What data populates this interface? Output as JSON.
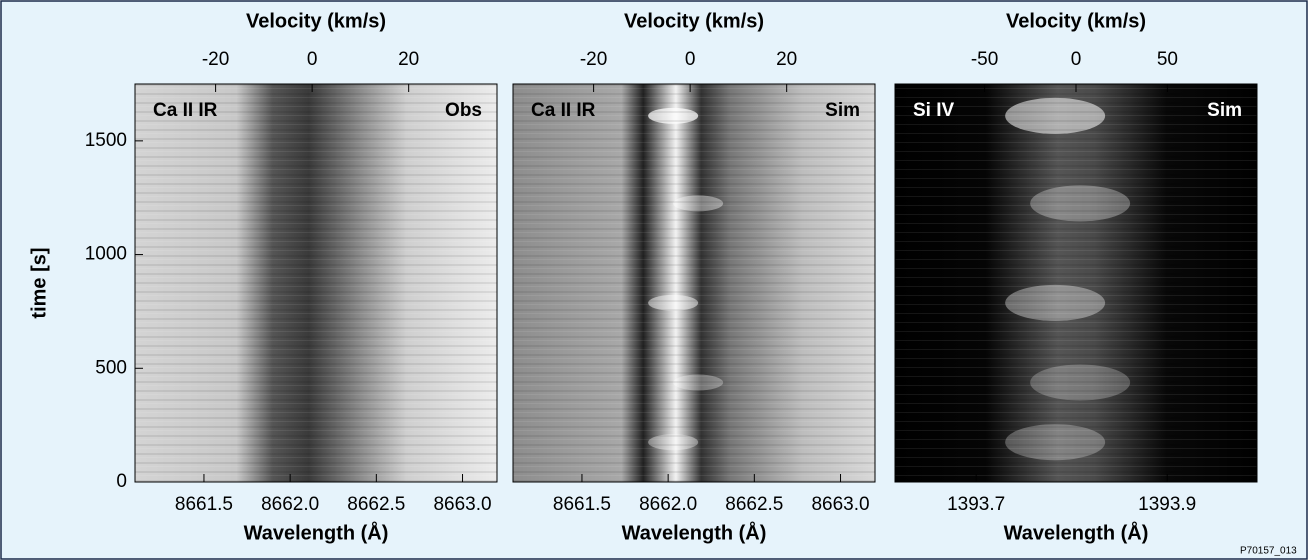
{
  "chart_data": [
    {
      "type": "image",
      "left_label": "Ca II IR",
      "right_label": "Obs",
      "colormap": "light",
      "xlabel": "Wavelength (Å)",
      "xlim": [
        8661.1,
        8663.2
      ],
      "xticks": [
        8661.5,
        {
          "value": 8662,
          "label": "8662.0"
        },
        8662.5,
        {
          "value": 8663,
          "label": "8663.0"
        }
      ],
      "x2label": "Velocity (km/s)",
      "x2lim": [
        -36.7,
        38.3
      ],
      "x2ticks": [
        -20,
        0,
        20
      ],
      "ylabel": "time [s]",
      "ylim": [
        0,
        1750
      ],
      "yticks": [
        0,
        500,
        1000,
        1500
      ]
    },
    {
      "type": "image",
      "left_label": "Ca II IR",
      "right_label": "Sim",
      "colormap": "mid",
      "xlabel": "Wavelength (Å)",
      "xlim": [
        8661.1,
        8663.2
      ],
      "xticks": [
        8661.5,
        {
          "value": 8662,
          "label": "8662.0"
        },
        8662.5,
        {
          "value": 8663,
          "label": "8663.0"
        }
      ],
      "x2label": "Velocity (km/s)",
      "x2lim": [
        -36.7,
        38.3
      ],
      "x2ticks": [
        -20,
        0,
        20
      ]
    },
    {
      "type": "image",
      "left_label": "Si IV",
      "right_label": "Sim",
      "colormap": "dark",
      "xlabel": "Wavelength (Å)",
      "xlim": [
        1393.615,
        1393.994
      ],
      "xticks": [
        1393.7,
        1393.9
      ],
      "x2label": "Velocity (km/s)",
      "x2lim": [
        -99,
        99
      ],
      "x2ticks": [
        -50,
        0,
        50
      ]
    }
  ],
  "footnote": "P70157_013"
}
